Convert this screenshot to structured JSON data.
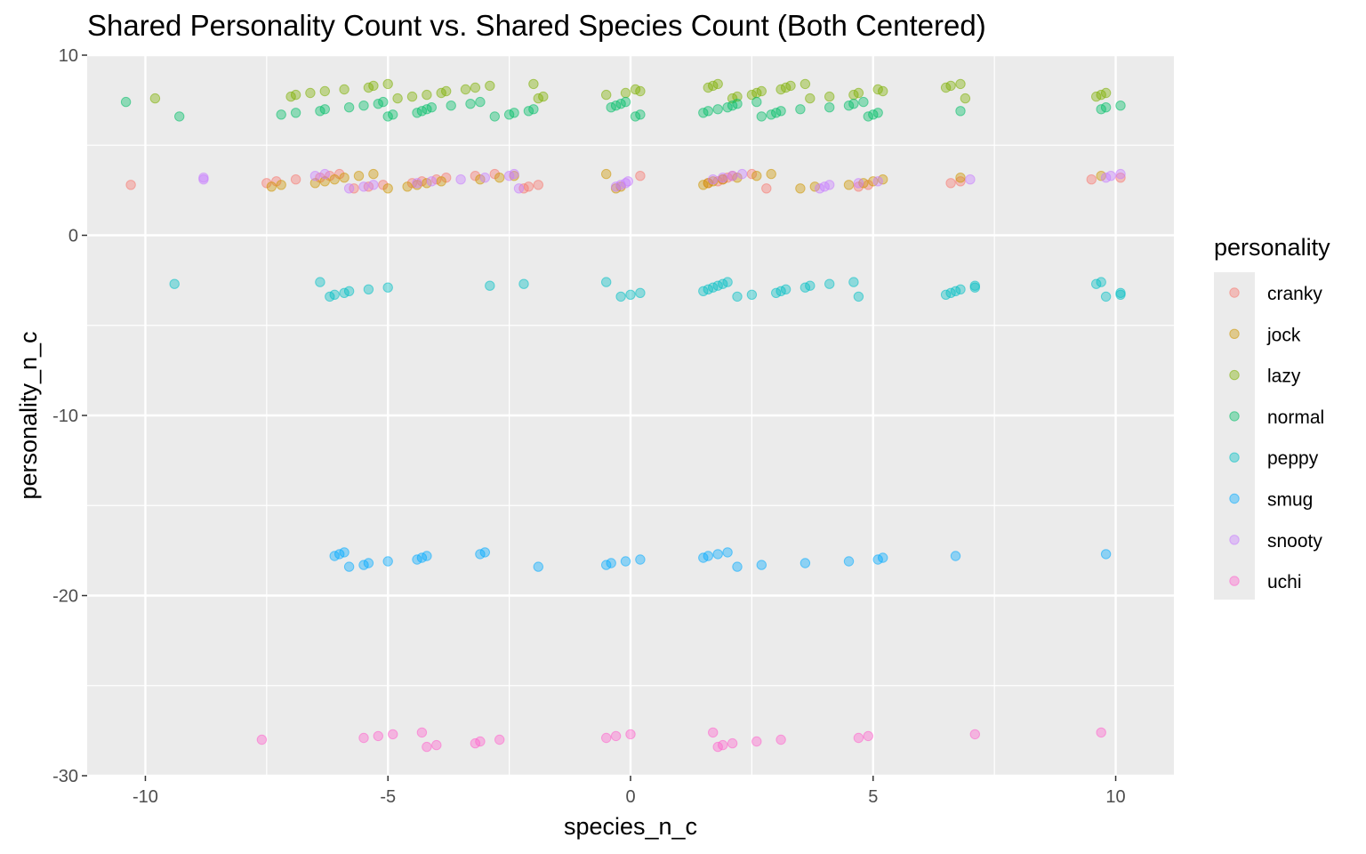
{
  "chart_data": {
    "type": "scatter",
    "title": "Shared Personality Count vs. Shared Species Count (Both Centered)",
    "xlabel": "species_n_c",
    "ylabel": "personality_n_c",
    "xlim": [
      -11.2,
      11.2
    ],
    "ylim": [
      -30,
      10
    ],
    "x_ticks": [
      -10,
      -5,
      0,
      5,
      10
    ],
    "x_tick_labels": [
      "-10",
      "-5",
      "0",
      "5",
      "10"
    ],
    "y_ticks": [
      -30,
      -20,
      -10,
      0,
      10
    ],
    "y_tick_labels": [
      "-30",
      "-20",
      "-10",
      "0",
      "10"
    ],
    "grid": true,
    "point_alpha": 0.4,
    "legend": {
      "title": "personality",
      "position": "right"
    },
    "series": [
      {
        "name": "cranky",
        "color": "#F8766D",
        "y_level": 3,
        "x": [
          -10.3,
          -7.5,
          -7.3,
          -6.9,
          -6.4,
          -6.2,
          -6.0,
          -5.7,
          -5.4,
          -5.1,
          -4.5,
          -4.3,
          -4.0,
          -3.8,
          -3.2,
          -2.8,
          -2.2,
          -2.1,
          -1.9,
          1.6,
          1.8,
          1.9,
          2.0,
          2.1,
          2.5,
          2.8,
          4.7,
          4.9,
          6.6,
          6.8,
          9.5,
          10.1,
          0.2
        ]
      },
      {
        "name": "jock",
        "color": "#CD9600",
        "y_level": 3,
        "x": [
          -7.4,
          -7.2,
          -6.5,
          -6.3,
          -6.1,
          -5.9,
          -5.6,
          -5.3,
          -5.0,
          -4.6,
          -4.4,
          -4.2,
          -3.9,
          -3.1,
          -2.7,
          -2.4,
          -0.5,
          -0.3,
          -0.2,
          1.5,
          1.6,
          1.7,
          1.9,
          2.2,
          2.6,
          2.9,
          3.5,
          3.8,
          4.5,
          4.8,
          5.0,
          5.2,
          6.8,
          9.7
        ]
      },
      {
        "name": "lazy",
        "color": "#7CAE00",
        "y_level": 8,
        "x": [
          -9.8,
          -7.0,
          -6.9,
          -6.6,
          -6.3,
          -5.9,
          -5.4,
          -5.3,
          -5.0,
          -4.8,
          -4.5,
          -4.2,
          -3.9,
          -3.8,
          -3.4,
          -3.2,
          -2.9,
          -2.0,
          -1.9,
          -1.8,
          -0.5,
          -0.1,
          0.2,
          0.1,
          1.6,
          1.7,
          1.8,
          2.1,
          2.2,
          2.5,
          2.6,
          2.7,
          3.1,
          3.2,
          3.3,
          3.6,
          3.7,
          4.1,
          4.6,
          4.7,
          5.2,
          5.1,
          6.5,
          6.6,
          6.8,
          6.9,
          9.6,
          9.7,
          9.8
        ]
      },
      {
        "name": "normal",
        "color": "#00BE67",
        "y_level": 7,
        "x": [
          -10.4,
          -9.3,
          -7.2,
          -6.9,
          -6.4,
          -6.3,
          -5.8,
          -5.5,
          -5.2,
          -5.1,
          -5.0,
          -4.9,
          -4.4,
          -4.3,
          -4.2,
          -4.1,
          -3.7,
          -3.3,
          -3.1,
          -2.8,
          -2.5,
          -2.4,
          -2.1,
          -2.0,
          -0.4,
          -0.3,
          -0.2,
          -0.1,
          0.1,
          0.2,
          1.5,
          1.6,
          1.8,
          2.0,
          2.1,
          2.2,
          2.6,
          2.7,
          2.9,
          3.0,
          3.1,
          3.5,
          4.1,
          4.5,
          4.6,
          4.8,
          4.9,
          5.0,
          5.1,
          6.8,
          9.7,
          9.8,
          10.1
        ]
      },
      {
        "name": "peppy",
        "color": "#00BFC4",
        "y_level": -3,
        "x": [
          -9.4,
          -6.4,
          -6.2,
          -6.1,
          -5.9,
          -5.8,
          -5.4,
          -5.0,
          -2.9,
          -2.2,
          -0.5,
          -0.2,
          0.0,
          0.2,
          1.5,
          1.6,
          1.7,
          1.8,
          1.9,
          2.0,
          2.2,
          2.5,
          3.0,
          3.1,
          3.2,
          3.6,
          3.7,
          4.1,
          4.6,
          4.7,
          6.5,
          6.6,
          6.7,
          6.8,
          7.1,
          7.1,
          9.6,
          9.7,
          9.8,
          10.1,
          10.1
        ]
      },
      {
        "name": "smug",
        "color": "#00A9FF",
        "y_level": -18,
        "x": [
          -6.1,
          -6.0,
          -5.9,
          -5.8,
          -5.5,
          -5.4,
          -5.0,
          -4.4,
          -4.3,
          -4.2,
          -3.1,
          -3.0,
          -1.9,
          -0.5,
          -0.4,
          -0.1,
          0.2,
          1.5,
          1.6,
          1.8,
          2.0,
          2.2,
          2.7,
          3.6,
          4.5,
          5.1,
          5.2,
          6.7,
          9.8
        ]
      },
      {
        "name": "snooty",
        "color": "#C77CFF",
        "y_level": 3,
        "x": [
          -8.8,
          -8.8,
          -6.5,
          -6.3,
          -5.8,
          -5.5,
          -5.3,
          -4.4,
          -4.1,
          -3.5,
          -3.0,
          -2.5,
          -2.4,
          -2.3,
          -0.3,
          -0.2,
          -0.1,
          -0.05,
          1.7,
          1.9,
          2.1,
          2.3,
          3.9,
          4.0,
          4.1,
          4.7,
          5.1,
          7.0,
          9.8,
          9.9,
          10.1
        ]
      },
      {
        "name": "uchi",
        "color": "#FF61CC",
        "y_level": -28,
        "x": [
          -7.6,
          -5.5,
          -5.2,
          -4.9,
          -4.3,
          -4.2,
          -4.0,
          -3.2,
          -3.1,
          -2.7,
          -0.5,
          -0.3,
          0.0,
          1.7,
          1.8,
          1.9,
          2.1,
          2.6,
          3.1,
          4.7,
          4.9,
          7.1,
          9.7
        ]
      }
    ]
  }
}
